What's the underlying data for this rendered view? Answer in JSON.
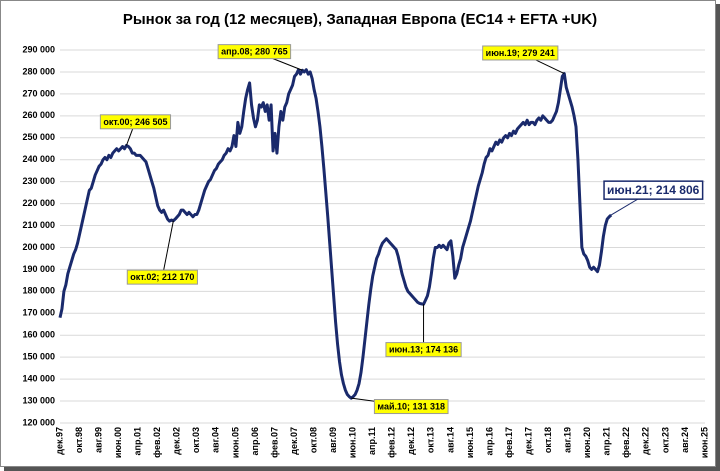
{
  "chart_data": {
    "type": "line",
    "title": "Рынок за год (12 месяцев), Западная Европа (EC14 + EFTA +UK)",
    "categories": [
      "дек.97",
      null,
      null,
      null,
      null,
      null,
      null,
      null,
      null,
      null,
      "окт.98",
      null,
      null,
      null,
      null,
      null,
      null,
      null,
      null,
      null,
      "авг.99",
      null,
      null,
      null,
      null,
      null,
      null,
      null,
      null,
      null,
      "июн.00",
      null,
      null,
      null,
      null,
      null,
      null,
      null,
      null,
      null,
      "апр.01",
      null,
      null,
      null,
      null,
      null,
      null,
      null,
      null,
      null,
      "фев.02",
      null,
      null,
      null,
      null,
      null,
      null,
      null,
      null,
      null,
      "дек.02",
      null,
      null,
      null,
      null,
      null,
      null,
      null,
      null,
      null,
      "окт.03",
      null,
      null,
      null,
      null,
      null,
      null,
      null,
      null,
      null,
      "авг.04",
      null,
      null,
      null,
      null,
      null,
      null,
      null,
      null,
      null,
      "июн.05",
      null,
      null,
      null,
      null,
      null,
      null,
      null,
      null,
      null,
      "апр.06",
      null,
      null,
      null,
      null,
      null,
      null,
      null,
      null,
      null,
      "фев.07",
      null,
      null,
      null,
      null,
      null,
      null,
      null,
      null,
      null,
      "дек.07",
      null,
      null,
      null,
      null,
      null,
      null,
      null,
      null,
      null,
      "окт.08",
      null,
      null,
      null,
      null,
      null,
      null,
      null,
      null,
      null,
      "авг.09",
      null,
      null,
      null,
      null,
      null,
      null,
      null,
      null,
      null,
      "июн.10",
      null,
      null,
      null,
      null,
      null,
      null,
      null,
      null,
      null,
      "апр.11",
      null,
      null,
      null,
      null,
      null,
      null,
      null,
      null,
      null,
      "фев.12",
      null,
      null,
      null,
      null,
      null,
      null,
      null,
      null,
      null,
      "дек.12",
      null,
      null,
      null,
      null,
      null,
      null,
      null,
      null,
      null,
      "окт.13",
      null,
      null,
      null,
      null,
      null,
      null,
      null,
      null,
      null,
      "авг.14",
      null,
      null,
      null,
      null,
      null,
      null,
      null,
      null,
      null,
      "июн.15",
      null,
      null,
      null,
      null,
      null,
      null,
      null,
      null,
      null,
      "апр.16",
      null,
      null,
      null,
      null,
      null,
      null,
      null,
      null,
      null,
      "фев.17",
      null,
      null,
      null,
      null,
      null,
      null,
      null,
      null,
      null,
      "дек.17",
      null,
      null,
      null,
      null,
      null,
      null,
      null,
      null,
      null,
      "окт.18",
      null,
      null,
      null,
      null,
      null,
      null,
      null,
      null,
      null,
      "авг.19",
      null,
      null,
      null,
      null,
      null,
      null,
      null,
      null,
      null,
      "июн.20",
      null,
      null,
      null,
      null,
      null,
      null,
      null,
      null,
      null,
      "апр.21",
      null,
      null,
      null,
      null,
      null,
      null,
      null,
      null,
      null,
      "фев.22",
      null,
      null,
      null,
      null,
      null,
      null,
      null,
      null,
      null,
      "дек.22",
      null,
      null,
      null,
      null,
      null,
      null,
      null,
      null,
      null,
      "окт.23",
      null,
      null,
      null,
      null,
      null,
      null,
      null,
      null,
      null,
      "авг.24",
      null,
      null,
      null,
      null,
      null,
      null,
      null,
      null,
      null,
      "июн.25"
    ],
    "color": "#1a2a6c",
    "values": [
      168000,
      172000,
      180000,
      183000,
      188000,
      191000,
      194000,
      197000,
      199000,
      202000,
      206000,
      210000,
      214000,
      218000,
      222000,
      226000,
      227000,
      230000,
      233000,
      235000,
      237000,
      238000,
      240000,
      241000,
      240000,
      242000,
      241000,
      243000,
      244000,
      245000,
      244000,
      245000,
      246000,
      245000,
      246505,
      246000,
      245000,
      243000,
      243000,
      242000,
      242000,
      242000,
      241000,
      240000,
      239000,
      236000,
      233000,
      230000,
      227000,
      223000,
      219000,
      217000,
      216000,
      217000,
      215000,
      213000,
      212000,
      212500,
      212170,
      213000,
      214000,
      215000,
      217000,
      217000,
      216000,
      215000,
      216000,
      215000,
      214000,
      215000,
      215000,
      217000,
      220000,
      223000,
      226000,
      228000,
      230000,
      231000,
      233000,
      235000,
      236000,
      238000,
      239000,
      240000,
      242000,
      243000,
      245000,
      244000,
      246000,
      251000,
      246000,
      257000,
      252000,
      255000,
      262000,
      268000,
      272000,
      275000,
      265000,
      259000,
      255000,
      258000,
      265000,
      264000,
      266000,
      262000,
      265000,
      258000,
      265000,
      244000,
      252000,
      243000,
      255000,
      262000,
      258000,
      264000,
      266000,
      270000,
      272000,
      274000,
      278000,
      279000,
      281000,
      279000,
      280765,
      280000,
      281000,
      279000,
      280000,
      277000,
      272000,
      268000,
      262000,
      255000,
      246000,
      236000,
      225000,
      214000,
      202000,
      190000,
      178000,
      166000,
      156000,
      148000,
      142000,
      138000,
      135000,
      133000,
      132000,
      131318,
      132000,
      133000,
      135000,
      138000,
      143000,
      150000,
      158000,
      166000,
      174000,
      181000,
      187000,
      191000,
      195000,
      197000,
      200000,
      202000,
      203000,
      204000,
      203000,
      202000,
      201000,
      200000,
      199000,
      196000,
      192000,
      188000,
      185000,
      182000,
      180000,
      179000,
      178000,
      177000,
      176000,
      175000,
      174500,
      174300,
      174136,
      176000,
      178000,
      182000,
      188000,
      195000,
      200000,
      200000,
      201000,
      200000,
      201000,
      200000,
      199000,
      202000,
      203000,
      196000,
      186000,
      188000,
      192000,
      195000,
      200000,
      203000,
      206000,
      209000,
      212000,
      216000,
      220000,
      224000,
      228000,
      231000,
      234000,
      238000,
      241000,
      242000,
      245000,
      244000,
      246000,
      248000,
      247000,
      249000,
      248000,
      250000,
      251000,
      250000,
      252000,
      251000,
      253000,
      252000,
      254000,
      255000,
      256000,
      257000,
      256000,
      258000,
      256000,
      257000,
      257000,
      256000,
      258000,
      259000,
      258000,
      260000,
      259000,
      258000,
      257000,
      257000,
      258000,
      260000,
      262000,
      266000,
      272000,
      278000,
      279241,
      273000,
      270000,
      267000,
      264000,
      260000,
      255000,
      240000,
      220000,
      200000,
      197000,
      196000,
      194000,
      191000,
      190000,
      191000,
      190000,
      189000,
      192000,
      198000,
      205000,
      210000,
      213000,
      214000,
      214806,
      null,
      null,
      null,
      null,
      null,
      null,
      null,
      null,
      null,
      null,
      null,
      null,
      null,
      null,
      null,
      null,
      null,
      null,
      null,
      null,
      null,
      null,
      null,
      null,
      null,
      null,
      null,
      null,
      null,
      null,
      null,
      null,
      null,
      null,
      null,
      null,
      null,
      null,
      null,
      null,
      null,
      null,
      null,
      null,
      null,
      null,
      null,
      null
    ],
    "ylim": [
      120000,
      290000
    ],
    "yticks": [
      {
        "value": 120000,
        "label": "120 000"
      },
      {
        "value": 130000,
        "label": "130 000"
      },
      {
        "value": 140000,
        "label": "140 000"
      },
      {
        "value": 150000,
        "label": "150 000"
      },
      {
        "value": 160000,
        "label": "160 000"
      },
      {
        "value": 170000,
        "label": "170 000"
      },
      {
        "value": 180000,
        "label": "180 000"
      },
      {
        "value": 190000,
        "label": "190 000"
      },
      {
        "value": 200000,
        "label": "200 000"
      },
      {
        "value": 210000,
        "label": "210 000"
      },
      {
        "value": 220000,
        "label": "220 000"
      },
      {
        "value": 230000,
        "label": "230 000"
      },
      {
        "value": 240000,
        "label": "240 000"
      },
      {
        "value": 250000,
        "label": "250 000"
      },
      {
        "value": 260000,
        "label": "260 000"
      },
      {
        "value": 270000,
        "label": "270 000"
      },
      {
        "value": 280000,
        "label": "280 000"
      },
      {
        "value": 290000,
        "label": "290 000"
      }
    ],
    "grid": true,
    "annotations": [
      {
        "label": "окт.00; 246 505",
        "value": 246505
      },
      {
        "label": "окт.02; 212 170",
        "value": 212170
      },
      {
        "label": "апр.08; 280 765",
        "value": 280765
      },
      {
        "label": "май.10; 131 318",
        "value": 131318
      },
      {
        "label": "июн.13; 174 136",
        "value": 174136
      },
      {
        "label": "июн.19; 279 241",
        "value": 279241
      },
      {
        "label": "июн.21; 214 806",
        "value": 214806
      }
    ]
  }
}
